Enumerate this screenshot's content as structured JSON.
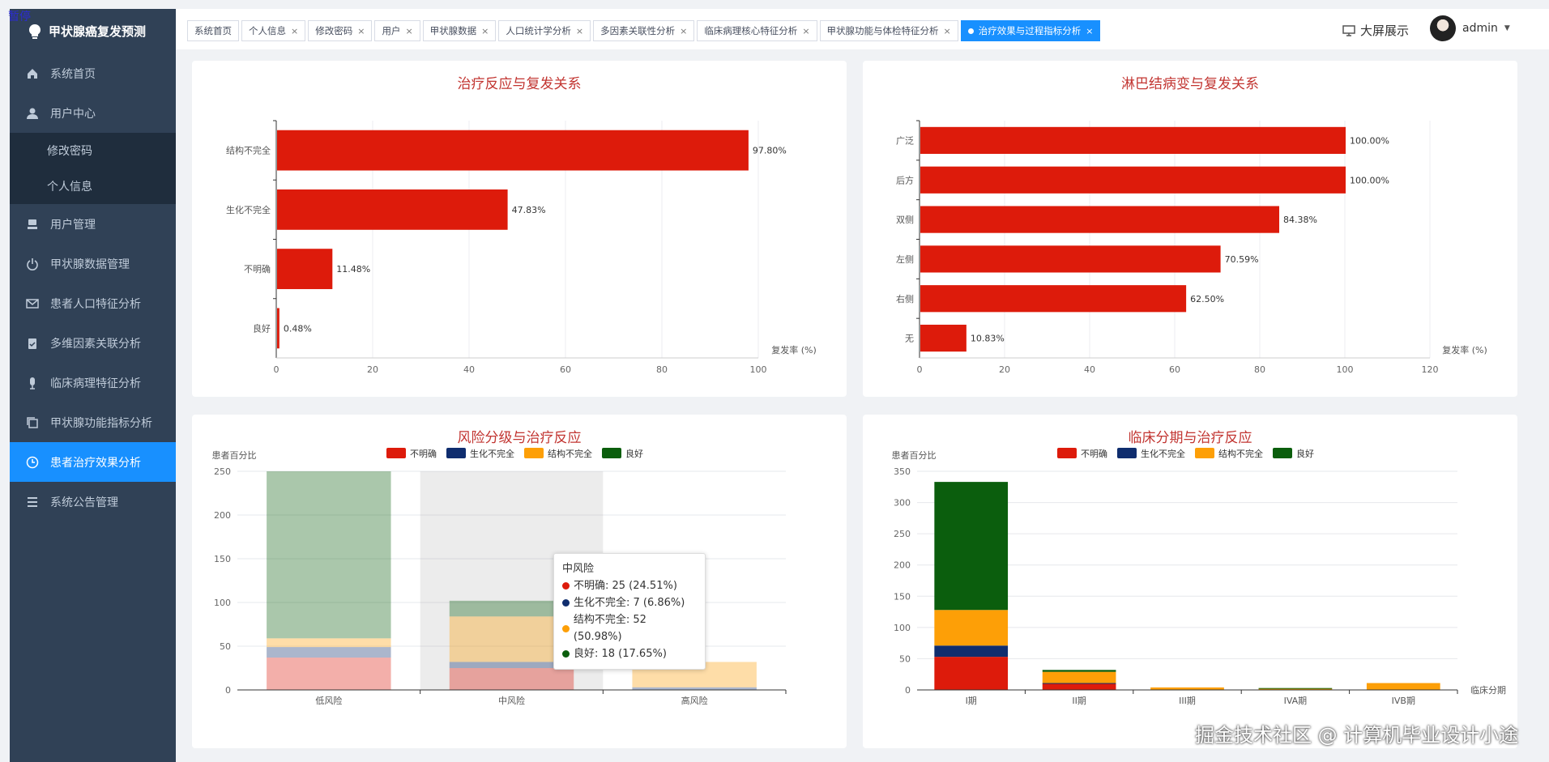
{
  "pause_label": "暂停",
  "sidebar": {
    "title": "甲状腺癌复发预测",
    "items": [
      {
        "label": "系统首页",
        "icon": "home-icon"
      },
      {
        "label": "用户中心",
        "icon": "user-icon"
      },
      {
        "label": "修改密码",
        "sub": true
      },
      {
        "label": "个人信息",
        "sub": true
      },
      {
        "label": "用户管理",
        "icon": "users-icon"
      },
      {
        "label": "甲状腺数据管理",
        "icon": "power-icon"
      },
      {
        "label": "患者人口特征分析",
        "icon": "mail-icon"
      },
      {
        "label": "多维因素关联分析",
        "icon": "clipboard-icon"
      },
      {
        "label": "临床病理特征分析",
        "icon": "microphone-icon"
      },
      {
        "label": "甲状腺功能指标分析",
        "icon": "copy-icon"
      },
      {
        "label": "患者治疗效果分析",
        "icon": "clock-icon",
        "active": true
      },
      {
        "label": "系统公告管理",
        "icon": "list-icon"
      }
    ]
  },
  "tabs": [
    {
      "label": "系统首页",
      "closable": false
    },
    {
      "label": "个人信息",
      "closable": true
    },
    {
      "label": "修改密码",
      "closable": true
    },
    {
      "label": "用户",
      "closable": true
    },
    {
      "label": "甲状腺数据",
      "closable": true
    },
    {
      "label": "人口统计学分析",
      "closable": true
    },
    {
      "label": "多因素关联性分析",
      "closable": true
    },
    {
      "label": "临床病理核心特征分析",
      "closable": true
    },
    {
      "label": "甲状腺功能与体检特征分析",
      "closable": true
    },
    {
      "label": "治疗效果与过程指标分析",
      "closable": true,
      "active": true
    }
  ],
  "header": {
    "screen_label": "大屏展示",
    "username": "admin"
  },
  "colors": {
    "red": "#dd1b0b",
    "navy": "#0f2d6e",
    "orange": "#fd9f07",
    "green": "#0b5e0d",
    "title": "#c23531",
    "accent": "#1890ff"
  },
  "chart_data": [
    {
      "type": "bar",
      "orientation": "horizontal",
      "title": "治疗反应与复发关系",
      "categories": [
        "结构不完全",
        "生化不完全",
        "不明确",
        "良好"
      ],
      "values": [
        97.8,
        47.83,
        11.48,
        0.48
      ],
      "value_labels": [
        "97.80%",
        "47.83%",
        "11.48%",
        "0.48%"
      ],
      "xlabel": "复发率 (%)",
      "xlim": [
        0,
        100
      ],
      "xticks": [
        "0",
        "20",
        "40",
        "60",
        "80",
        "100"
      ],
      "grid": true
    },
    {
      "type": "bar",
      "orientation": "horizontal",
      "title": "淋巴结病变与复发关系",
      "categories": [
        "广泛",
        "后方",
        "双侧",
        "左侧",
        "右侧",
        "无"
      ],
      "values": [
        100.0,
        100.0,
        84.38,
        70.59,
        62.5,
        10.83
      ],
      "value_labels": [
        "100.00%",
        "100.00%",
        "84.38%",
        "70.59%",
        "62.50%",
        "10.83%"
      ],
      "xlabel": "复发率 (%)",
      "xlim": [
        0,
        120
      ],
      "xticks": [
        "0",
        "20",
        "40",
        "60",
        "80",
        "100",
        "120"
      ],
      "grid": true
    },
    {
      "type": "bar",
      "stacked": true,
      "title": "风险分级与治疗反应",
      "ylabel": "患者百分比",
      "ylim": [
        0,
        250
      ],
      "yticks": [
        "0",
        "50",
        "100",
        "150",
        "200",
        "250"
      ],
      "categories": [
        "低风险",
        "中风险",
        "高风险"
      ],
      "legend": [
        "不明确",
        "生化不完全",
        "结构不完全",
        "良好"
      ],
      "legend_position": "top",
      "series": [
        {
          "name": "不明确",
          "values": [
            37,
            25,
            0
          ]
        },
        {
          "name": "生化不完全",
          "values": [
            12,
            7,
            3
          ]
        },
        {
          "name": "结构不完全",
          "values": [
            10,
            52,
            29
          ]
        },
        {
          "name": "良好",
          "values": [
            191,
            18,
            0
          ]
        }
      ],
      "highlighted_category": "中风险",
      "tooltip": {
        "title": "中风险",
        "rows": [
          "不明确: 25 (24.51%)",
          "生化不完全: 7 (6.86%)",
          "结构不完全: 52 (50.98%)",
          "良好: 18 (17.65%)"
        ]
      },
      "grid": true
    },
    {
      "type": "bar",
      "stacked": true,
      "title": "临床分期与治疗反应",
      "ylabel": "患者百分比",
      "xlabel": "临床分期",
      "ylim": [
        0,
        350
      ],
      "yticks": [
        "0",
        "50",
        "100",
        "150",
        "200",
        "250",
        "300",
        "350"
      ],
      "categories": [
        "I期",
        "II期",
        "III期",
        "IVA期",
        "IVB期"
      ],
      "legend": [
        "不明确",
        "生化不完全",
        "结构不完全",
        "良好"
      ],
      "legend_position": "top",
      "series": [
        {
          "name": "不明确",
          "values": [
            53,
            10,
            0,
            0,
            0
          ]
        },
        {
          "name": "生化不完全",
          "values": [
            18,
            1,
            0,
            0,
            0
          ]
        },
        {
          "name": "结构不完全",
          "values": [
            57,
            18,
            4,
            2,
            11
          ]
        },
        {
          "name": "良好",
          "values": [
            205,
            3,
            0,
            1,
            0
          ]
        }
      ],
      "grid": true
    }
  ],
  "watermark": "掘金技术社区 @ 计算机毕业设计小途"
}
